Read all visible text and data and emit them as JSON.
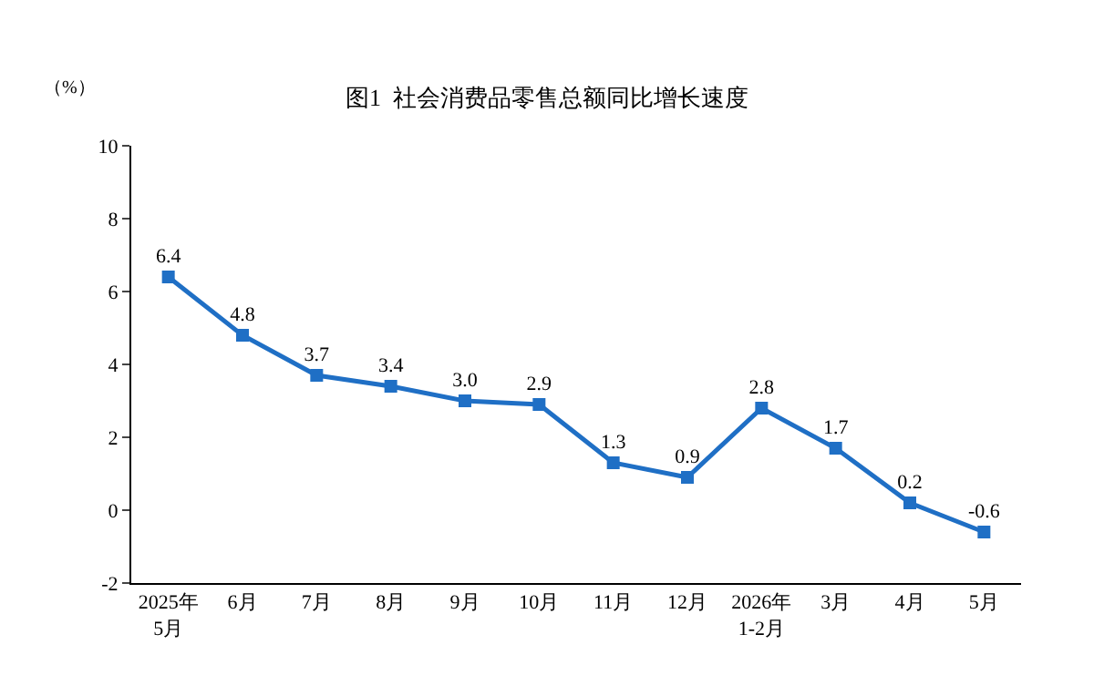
{
  "chart_data": {
    "type": "line",
    "title": "图1  社会消费品零售总额同比增长速度",
    "ylabel": "（%）",
    "categories": [
      "2025年\n5月",
      "6月",
      "7月",
      "8月",
      "9月",
      "10月",
      "11月",
      "12月",
      "2026年\n1-2月",
      "3月",
      "4月",
      "5月"
    ],
    "series": [
      {
        "color": "#1f6fc5",
        "values": [
          6.4,
          4.8,
          3.7,
          3.4,
          3.0,
          2.9,
          1.3,
          0.9,
          2.8,
          1.7,
          0.2,
          -0.6
        ],
        "value_labels": [
          "6.4",
          "4.8",
          "3.7",
          "3.4",
          "3.0",
          "2.9",
          "1.3",
          "0.9",
          "2.8",
          "1.7",
          "0.2",
          "-0.6"
        ]
      }
    ],
    "ylim": [
      -2,
      10
    ],
    "yticks": [
      -2,
      0,
      2,
      4,
      6,
      8,
      10
    ],
    "marker": "square",
    "line_style": "solid",
    "grid": false
  }
}
